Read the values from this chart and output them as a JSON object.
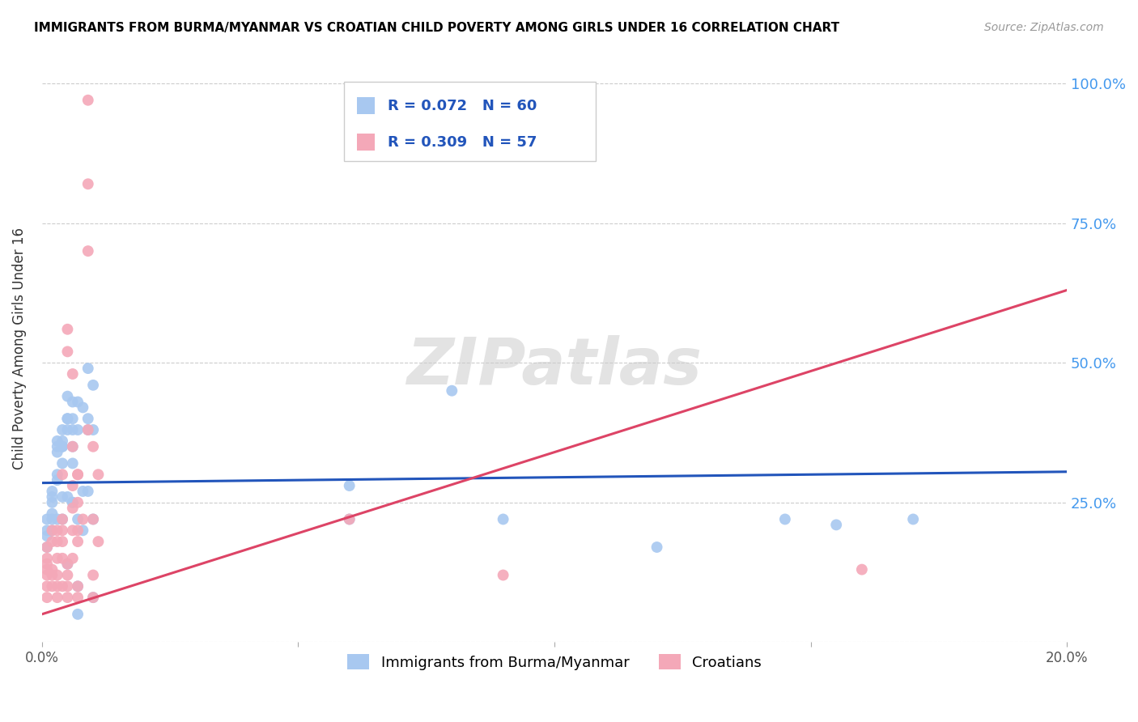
{
  "title": "IMMIGRANTS FROM BURMA/MYANMAR VS CROATIAN CHILD POVERTY AMONG GIRLS UNDER 16 CORRELATION CHART",
  "source": "Source: ZipAtlas.com",
  "ylabel": "Child Poverty Among Girls Under 16",
  "xmin": 0.0,
  "xmax": 0.2,
  "ymin": 0.0,
  "ymax": 1.05,
  "yticks": [
    0.0,
    0.25,
    0.5,
    0.75,
    1.0
  ],
  "ytick_labels": [
    "",
    "25.0%",
    "50.0%",
    "75.0%",
    "100.0%"
  ],
  "blue_R": 0.072,
  "blue_N": 60,
  "pink_R": 0.309,
  "pink_N": 57,
  "blue_color": "#A8C8F0",
  "pink_color": "#F4A8B8",
  "blue_line_color": "#2255BB",
  "pink_line_color": "#DD4466",
  "legend_label_blue": "Immigrants from Burma/Myanmar",
  "legend_label_pink": "Croatians",
  "watermark": "ZIPatlas",
  "blue_line_x0": 0.0,
  "blue_line_x1": 0.2,
  "blue_line_y0": 0.285,
  "blue_line_y1": 0.305,
  "pink_line_x0": 0.0,
  "pink_line_x1": 0.2,
  "pink_line_y0": 0.05,
  "pink_line_y1": 0.63,
  "blue_points": [
    [
      0.001,
      0.22
    ],
    [
      0.001,
      0.2
    ],
    [
      0.001,
      0.19
    ],
    [
      0.001,
      0.17
    ],
    [
      0.002,
      0.25
    ],
    [
      0.002,
      0.22
    ],
    [
      0.002,
      0.2
    ],
    [
      0.002,
      0.26
    ],
    [
      0.002,
      0.27
    ],
    [
      0.002,
      0.23
    ],
    [
      0.003,
      0.3
    ],
    [
      0.003,
      0.22
    ],
    [
      0.003,
      0.36
    ],
    [
      0.003,
      0.34
    ],
    [
      0.003,
      0.35
    ],
    [
      0.003,
      0.29
    ],
    [
      0.004,
      0.32
    ],
    [
      0.004,
      0.35
    ],
    [
      0.004,
      0.36
    ],
    [
      0.004,
      0.22
    ],
    [
      0.004,
      0.26
    ],
    [
      0.004,
      0.38
    ],
    [
      0.004,
      0.35
    ],
    [
      0.005,
      0.4
    ],
    [
      0.005,
      0.38
    ],
    [
      0.005,
      0.26
    ],
    [
      0.005,
      0.14
    ],
    [
      0.005,
      0.4
    ],
    [
      0.005,
      0.44
    ],
    [
      0.006,
      0.43
    ],
    [
      0.006,
      0.35
    ],
    [
      0.006,
      0.25
    ],
    [
      0.006,
      0.32
    ],
    [
      0.006,
      0.4
    ],
    [
      0.006,
      0.38
    ],
    [
      0.006,
      0.25
    ],
    [
      0.007,
      0.22
    ],
    [
      0.007,
      0.1
    ],
    [
      0.007,
      0.43
    ],
    [
      0.007,
      0.38
    ],
    [
      0.007,
      0.05
    ],
    [
      0.008,
      0.42
    ],
    [
      0.008,
      0.27
    ],
    [
      0.008,
      0.2
    ],
    [
      0.009,
      0.49
    ],
    [
      0.009,
      0.4
    ],
    [
      0.009,
      0.38
    ],
    [
      0.009,
      0.27
    ],
    [
      0.01,
      0.46
    ],
    [
      0.01,
      0.38
    ],
    [
      0.01,
      0.22
    ],
    [
      0.01,
      0.08
    ],
    [
      0.06,
      0.28
    ],
    [
      0.06,
      0.22
    ],
    [
      0.08,
      0.45
    ],
    [
      0.09,
      0.22
    ],
    [
      0.12,
      0.17
    ],
    [
      0.145,
      0.22
    ],
    [
      0.155,
      0.21
    ],
    [
      0.17,
      0.22
    ]
  ],
  "pink_points": [
    [
      0.001,
      0.1
    ],
    [
      0.001,
      0.13
    ],
    [
      0.001,
      0.15
    ],
    [
      0.001,
      0.12
    ],
    [
      0.001,
      0.08
    ],
    [
      0.001,
      0.17
    ],
    [
      0.001,
      0.14
    ],
    [
      0.002,
      0.18
    ],
    [
      0.002,
      0.12
    ],
    [
      0.002,
      0.2
    ],
    [
      0.002,
      0.13
    ],
    [
      0.002,
      0.1
    ],
    [
      0.003,
      0.18
    ],
    [
      0.003,
      0.15
    ],
    [
      0.003,
      0.08
    ],
    [
      0.003,
      0.1
    ],
    [
      0.003,
      0.12
    ],
    [
      0.003,
      0.2
    ],
    [
      0.004,
      0.18
    ],
    [
      0.004,
      0.1
    ],
    [
      0.004,
      0.22
    ],
    [
      0.004,
      0.3
    ],
    [
      0.004,
      0.2
    ],
    [
      0.004,
      0.15
    ],
    [
      0.005,
      0.56
    ],
    [
      0.005,
      0.52
    ],
    [
      0.005,
      0.14
    ],
    [
      0.005,
      0.12
    ],
    [
      0.005,
      0.1
    ],
    [
      0.005,
      0.08
    ],
    [
      0.006,
      0.48
    ],
    [
      0.006,
      0.28
    ],
    [
      0.006,
      0.24
    ],
    [
      0.006,
      0.2
    ],
    [
      0.006,
      0.15
    ],
    [
      0.006,
      0.35
    ],
    [
      0.007,
      0.3
    ],
    [
      0.007,
      0.2
    ],
    [
      0.007,
      0.18
    ],
    [
      0.007,
      0.1
    ],
    [
      0.007,
      0.08
    ],
    [
      0.007,
      0.3
    ],
    [
      0.007,
      0.25
    ],
    [
      0.008,
      0.22
    ],
    [
      0.009,
      0.97
    ],
    [
      0.009,
      0.82
    ],
    [
      0.009,
      0.7
    ],
    [
      0.009,
      0.38
    ],
    [
      0.01,
      0.35
    ],
    [
      0.01,
      0.22
    ],
    [
      0.01,
      0.12
    ],
    [
      0.01,
      0.08
    ],
    [
      0.011,
      0.3
    ],
    [
      0.011,
      0.18
    ],
    [
      0.06,
      0.22
    ],
    [
      0.09,
      0.12
    ],
    [
      0.16,
      0.13
    ]
  ]
}
